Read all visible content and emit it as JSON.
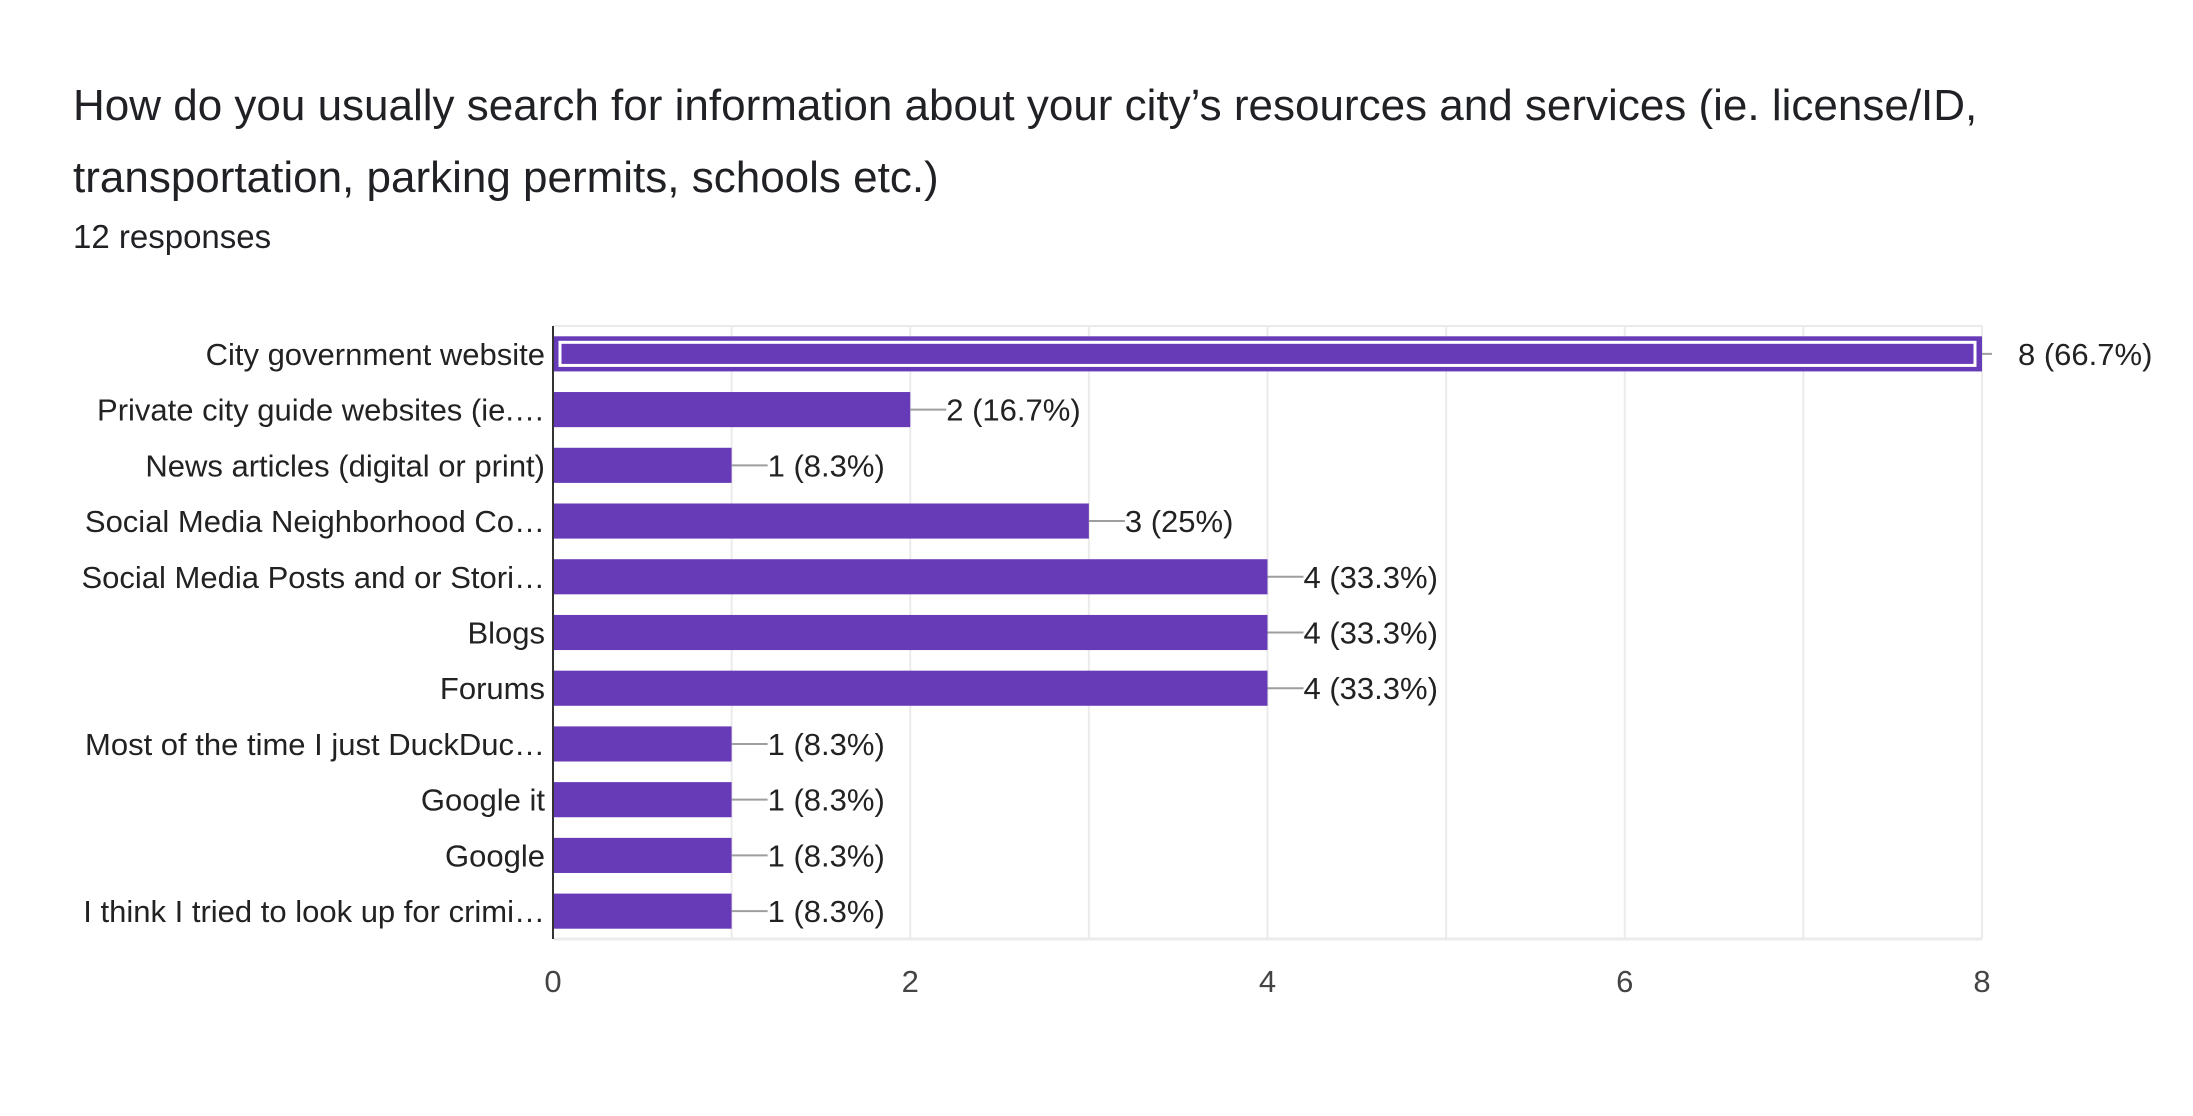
{
  "title": "How do you usually search for information about your city’s resources and services (ie. license/ID, transportation, parking permits, schools etc.)",
  "responses": "12 responses",
  "colors": {
    "bar": "#673ab7",
    "grid": "#ebebeb",
    "leader": "#9e9e9e"
  },
  "chart_data": {
    "type": "bar",
    "orientation": "horizontal",
    "title": "How do you usually search for information about your city’s resources and services (ie. license/ID, transportation, parking permits, schools etc.)",
    "categories": [
      "City government website",
      "Private city guide websites (ie.…",
      "News articles (digital or print)",
      "Social Media Neighborhood Co…",
      "Social Media Posts and or Stori…",
      "Blogs",
      "Forums",
      "Most of the time I just DuckDuc…",
      "Google it",
      "Google",
      "I think I tried to look up for crimi…"
    ],
    "values": [
      8,
      2,
      1,
      3,
      4,
      4,
      4,
      1,
      1,
      1,
      1
    ],
    "data_labels": [
      "8 (66.7%)",
      "2 (16.7%)",
      "1 (8.3%)",
      "3 (25%)",
      "4 (33.3%)",
      "4 (33.3%)",
      "4 (33.3%)",
      "1 (8.3%)",
      "1 (8.3%)",
      "1 (8.3%)",
      "1 (8.3%)"
    ],
    "xlim": [
      0,
      8
    ],
    "xticks": [
      "0",
      "2",
      "4",
      "6",
      "8"
    ],
    "grid": true,
    "xlabel": "",
    "ylabel": ""
  }
}
